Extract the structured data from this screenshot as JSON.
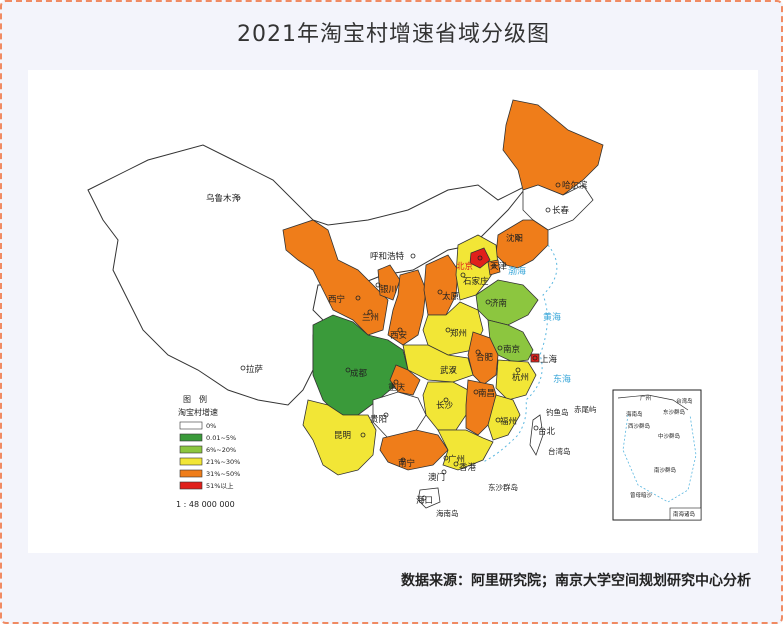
{
  "title": "2021年淘宝村增速省域分级图",
  "source": "数据来源：阿里研究院；南京大学空间规划研究中心分析",
  "legend": {
    "heading": "图　例",
    "subtitle": "淘宝村增速",
    "items": [
      {
        "label": "0%",
        "color": "#ffffff"
      },
      {
        "label": "0.01~5%",
        "color": "#3a9a3a"
      },
      {
        "label": "6%~20%",
        "color": "#8cc63f"
      },
      {
        "label": "21%~30%",
        "color": "#f2e636"
      },
      {
        "label": "31%~50%",
        "color": "#ef7d1a"
      },
      {
        "label": "51%以上",
        "color": "#e0201b"
      }
    ],
    "scale": "1 : 48 000 000"
  },
  "cities": [
    "乌鲁木齐",
    "哈尔滨",
    "长春",
    "沈阳",
    "呼和浩特",
    "北京",
    "天津",
    "石家庄",
    "太原",
    "银川",
    "西宁",
    "兰州",
    "济南",
    "郑州",
    "西安",
    "南京",
    "合肥",
    "上海",
    "杭州",
    "武汉",
    "成都",
    "重庆",
    "拉萨",
    "南昌",
    "长沙",
    "福州",
    "台北",
    "贵阳",
    "昆明",
    "南宁",
    "广州",
    "香港",
    "澳门",
    "海口"
  ],
  "islands": [
    "钓鱼岛",
    "赤尾屿",
    "台湾岛",
    "东沙群岛",
    "海南岛"
  ],
  "seas": [
    "渤海",
    "黄海",
    "东海"
  ],
  "inset": {
    "caption": "南海诸岛",
    "labels": [
      "广州",
      "台湾岛",
      "海南岛",
      "东沙群岛",
      "西沙群岛",
      "中沙群岛",
      "南沙群岛",
      "曾母暗沙"
    ]
  }
}
